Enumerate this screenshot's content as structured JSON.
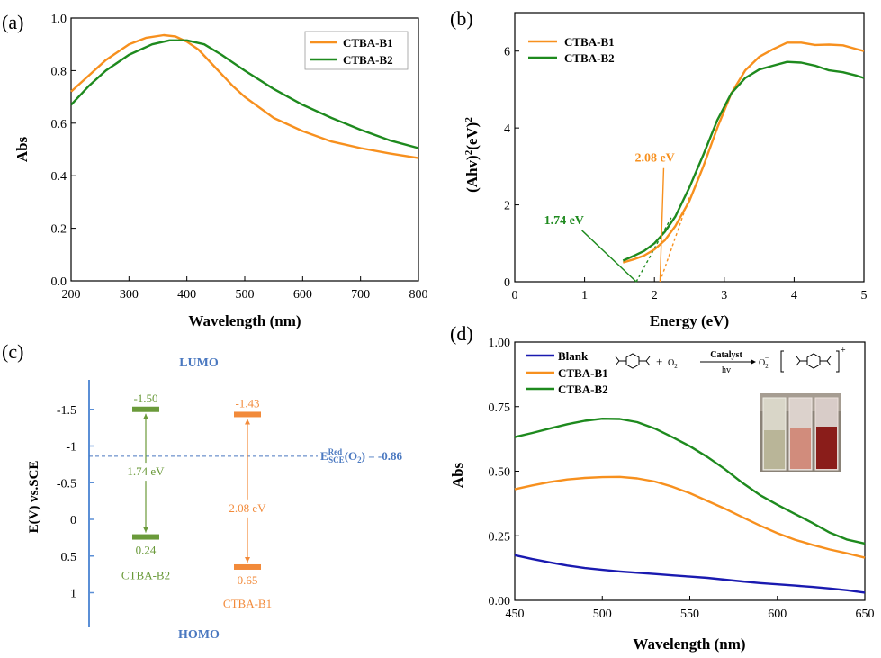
{
  "colors": {
    "orange": "#f7901e",
    "green": "#1e8a1e",
    "blue": "#1a1ab0",
    "diag_green": "#6a9a3a",
    "diag_orange": "#f28a3a",
    "axis_blue": "#5b8fd6",
    "label_blue": "#4a78c0"
  },
  "panel_labels": [
    "(a)",
    "(b)",
    "(c)",
    "(d)"
  ],
  "chart_data": [
    {
      "panel": "(a)",
      "type": "line",
      "xlabel": "Wavelength (nm)",
      "ylabel": "Abs",
      "xlim": [
        200,
        800
      ],
      "ylim": [
        0.0,
        1.0
      ],
      "xticks": [
        "200",
        "300",
        "400",
        "500",
        "600",
        "700",
        "800"
      ],
      "yticks": [
        "0.0",
        "0.2",
        "0.4",
        "0.6",
        "0.8",
        "1.0"
      ],
      "legend": "top-right",
      "series": [
        {
          "name": "CTBA-B1",
          "color": "orange",
          "points": [
            [
              200,
              0.72
            ],
            [
              230,
              0.78
            ],
            [
              260,
              0.84
            ],
            [
              300,
              0.9
            ],
            [
              330,
              0.925
            ],
            [
              360,
              0.935
            ],
            [
              380,
              0.93
            ],
            [
              400,
              0.91
            ],
            [
              420,
              0.88
            ],
            [
              450,
              0.81
            ],
            [
              480,
              0.74
            ],
            [
              500,
              0.7
            ],
            [
              550,
              0.62
            ],
            [
              600,
              0.57
            ],
            [
              650,
              0.53
            ],
            [
              700,
              0.505
            ],
            [
              750,
              0.485
            ],
            [
              800,
              0.467
            ]
          ]
        },
        {
          "name": "CTBA-B2",
          "color": "green",
          "points": [
            [
              200,
              0.67
            ],
            [
              230,
              0.74
            ],
            [
              260,
              0.8
            ],
            [
              300,
              0.86
            ],
            [
              340,
              0.9
            ],
            [
              370,
              0.915
            ],
            [
              400,
              0.915
            ],
            [
              430,
              0.9
            ],
            [
              460,
              0.86
            ],
            [
              500,
              0.8
            ],
            [
              550,
              0.73
            ],
            [
              600,
              0.67
            ],
            [
              650,
              0.62
            ],
            [
              700,
              0.575
            ],
            [
              750,
              0.535
            ],
            [
              800,
              0.505
            ]
          ]
        }
      ]
    },
    {
      "panel": "(b)",
      "type": "line",
      "xlabel": "Energy (eV)",
      "ylabel_main": "(Ahv)",
      "ylabel_sup1": "2",
      "ylabel_mid": "(eV)",
      "ylabel_sup2": "2",
      "xlim": [
        0,
        5
      ],
      "ylim": [
        0,
        7
      ],
      "xticks": [
        "0",
        "1",
        "2",
        "3",
        "4",
        "5"
      ],
      "yticks": [
        "0",
        "2",
        "4",
        "6"
      ],
      "legend": "top-left",
      "series": [
        {
          "name": "CTBA-B1",
          "color": "orange",
          "points": [
            [
              1.55,
              0.5
            ],
            [
              1.7,
              0.58
            ],
            [
              1.85,
              0.68
            ],
            [
              2.0,
              0.84
            ],
            [
              2.15,
              1.08
            ],
            [
              2.3,
              1.45
            ],
            [
              2.5,
              2.1
            ],
            [
              2.7,
              3.0
            ],
            [
              2.9,
              4.0
            ],
            [
              3.1,
              4.9
            ],
            [
              3.3,
              5.5
            ],
            [
              3.5,
              5.85
            ],
            [
              3.7,
              6.05
            ],
            [
              3.9,
              6.22
            ],
            [
              4.1,
              6.22
            ],
            [
              4.3,
              6.16
            ],
            [
              4.5,
              6.17
            ],
            [
              4.7,
              6.15
            ],
            [
              4.9,
              6.05
            ],
            [
              5.0,
              6.0
            ]
          ]
        },
        {
          "name": "CTBA-B2",
          "color": "green",
          "points": [
            [
              1.55,
              0.55
            ],
            [
              1.7,
              0.67
            ],
            [
              1.85,
              0.8
            ],
            [
              2.0,
              1.0
            ],
            [
              2.15,
              1.3
            ],
            [
              2.3,
              1.7
            ],
            [
              2.5,
              2.45
            ],
            [
              2.7,
              3.3
            ],
            [
              2.9,
              4.2
            ],
            [
              3.1,
              4.9
            ],
            [
              3.3,
              5.3
            ],
            [
              3.5,
              5.52
            ],
            [
              3.7,
              5.62
            ],
            [
              3.9,
              5.72
            ],
            [
              4.1,
              5.7
            ],
            [
              4.3,
              5.62
            ],
            [
              4.5,
              5.5
            ],
            [
              4.7,
              5.45
            ],
            [
              4.9,
              5.36
            ],
            [
              5.0,
              5.3
            ]
          ]
        }
      ],
      "tangents": [
        {
          "color": "orange",
          "from": [
            2.08,
            0
          ],
          "to": [
            2.5,
            2.2
          ]
        },
        {
          "color": "green",
          "from": [
            1.74,
            0
          ],
          "to": [
            2.25,
            1.7
          ]
        }
      ],
      "annotations": [
        {
          "text": "2.08 eV",
          "color": "orange",
          "at": [
            1.72,
            3.12
          ],
          "points_to": [
            2.08,
            0
          ]
        },
        {
          "text": "1.74 eV",
          "color": "green",
          "at": [
            0.42,
            1.5
          ],
          "points_to": [
            1.74,
            0
          ]
        }
      ]
    },
    {
      "panel": "(c)",
      "type": "diagram",
      "ylabel": "E(V) vs.SCE",
      "ylim": [
        -1.75,
        1.2
      ],
      "yticks": [
        [
          "-1.5",
          -1.5
        ],
        [
          "-1",
          -1.0
        ],
        [
          "-0.5",
          -0.5
        ],
        [
          "0",
          0.0
        ],
        [
          "0.5",
          0.5
        ],
        [
          "1",
          1.0
        ]
      ],
      "top_label": "LUMO",
      "bottom_label": "HOMO",
      "reference": {
        "label_E": "E",
        "label_sup": "Red",
        "label_sub": "SCE",
        "label_rest": "(O",
        "label_sub2": "2",
        "label_end": ") = -0.86",
        "value": -0.86
      },
      "materials": [
        {
          "name": "CTBA-B2",
          "color": "diag_green",
          "lumo": -1.5,
          "lumo_label": "-1.50",
          "homo": 0.24,
          "homo_label": "0.24",
          "gap_label": "1.74 eV"
        },
        {
          "name": "CTBA-B1",
          "color": "diag_orange",
          "lumo": -1.43,
          "lumo_label": "-1.43",
          "homo": 0.65,
          "homo_label": "0.65",
          "gap_label": "2.08 eV"
        }
      ]
    },
    {
      "panel": "(d)",
      "type": "line",
      "xlabel": "Wavelength (nm)",
      "ylabel": "Abs",
      "xlim": [
        450,
        650
      ],
      "ylim": [
        0.0,
        1.0
      ],
      "xticks": [
        "450",
        "500",
        "550",
        "600",
        "650"
      ],
      "yticks": [
        "0.00",
        "0.25",
        "0.50",
        "0.75",
        "1.00"
      ],
      "legend": "top-left",
      "reaction": {
        "catalyst": "Catalyst",
        "light": "hv",
        "plus": "+",
        "o2_left": "O",
        "o2_left_sub": "2",
        "o2_right": "O",
        "o2_right_sub": "2",
        "o2_right_sup": "−",
        "charge": "+"
      },
      "series": [
        {
          "name": "Blank",
          "color": "blue",
          "points": [
            [
              450,
              0.175
            ],
            [
              460,
              0.16
            ],
            [
              470,
              0.147
            ],
            [
              480,
              0.135
            ],
            [
              490,
              0.125
            ],
            [
              500,
              0.118
            ],
            [
              510,
              0.112
            ],
            [
              520,
              0.107
            ],
            [
              530,
              0.102
            ],
            [
              540,
              0.097
            ],
            [
              550,
              0.092
            ],
            [
              560,
              0.087
            ],
            [
              570,
              0.08
            ],
            [
              580,
              0.073
            ],
            [
              590,
              0.067
            ],
            [
              600,
              0.062
            ],
            [
              610,
              0.057
            ],
            [
              620,
              0.052
            ],
            [
              630,
              0.046
            ],
            [
              640,
              0.039
            ],
            [
              650,
              0.03
            ]
          ]
        },
        {
          "name": "CTBA-B1",
          "color": "orange",
          "points": [
            [
              450,
              0.43
            ],
            [
              460,
              0.445
            ],
            [
              470,
              0.458
            ],
            [
              480,
              0.468
            ],
            [
              490,
              0.474
            ],
            [
              500,
              0.477
            ],
            [
              510,
              0.478
            ],
            [
              520,
              0.472
            ],
            [
              530,
              0.46
            ],
            [
              540,
              0.44
            ],
            [
              550,
              0.415
            ],
            [
              560,
              0.385
            ],
            [
              570,
              0.355
            ],
            [
              580,
              0.322
            ],
            [
              590,
              0.29
            ],
            [
              600,
              0.26
            ],
            [
              610,
              0.235
            ],
            [
              620,
              0.215
            ],
            [
              630,
              0.197
            ],
            [
              640,
              0.182
            ],
            [
              650,
              0.165
            ]
          ]
        },
        {
          "name": "CTBA-B2",
          "color": "green",
          "points": [
            [
              450,
              0.632
            ],
            [
              460,
              0.648
            ],
            [
              470,
              0.665
            ],
            [
              480,
              0.682
            ],
            [
              490,
              0.695
            ],
            [
              500,
              0.703
            ],
            [
              510,
              0.702
            ],
            [
              520,
              0.69
            ],
            [
              530,
              0.665
            ],
            [
              540,
              0.632
            ],
            [
              550,
              0.597
            ],
            [
              560,
              0.555
            ],
            [
              570,
              0.508
            ],
            [
              580,
              0.455
            ],
            [
              590,
              0.408
            ],
            [
              600,
              0.37
            ],
            [
              610,
              0.335
            ],
            [
              620,
              0.3
            ],
            [
              630,
              0.262
            ],
            [
              640,
              0.235
            ],
            [
              650,
              0.22
            ]
          ]
        }
      ]
    }
  ]
}
